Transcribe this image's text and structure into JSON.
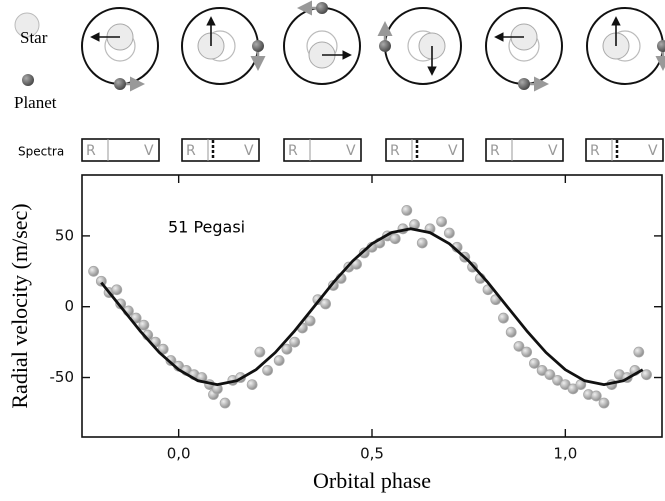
{
  "diagram": {
    "star_label": "Star",
    "planet_label": "Planet",
    "spectra_label": "Spectra",
    "spectra_boxes": [
      [
        "R",
        "V"
      ],
      [
        "R",
        "V"
      ],
      [
        "R",
        "V"
      ],
      [
        "R",
        "V"
      ],
      [
        "R",
        "V"
      ],
      [
        "R",
        "V"
      ]
    ]
  },
  "chart_data": {
    "type": "scatter",
    "annotation": "51 Pegasi",
    "x_label": "Orbital phase",
    "y_label": "Radial velocity (m/sec)",
    "xlim": [
      -0.25,
      1.25
    ],
    "ylim": [
      -92,
      93
    ],
    "xticks": [
      {
        "value": 0,
        "label": "0,0"
      },
      {
        "value": 0.5,
        "label": "0,5"
      },
      {
        "value": 1,
        "label": "1,0"
      }
    ],
    "yticks": [
      -50,
      0,
      50
    ],
    "series": [
      {
        "kind": "points",
        "color": "#a8a8a8",
        "x": [
          -0.22,
          -0.2,
          -0.18,
          -0.16,
          -0.15,
          -0.13,
          -0.11,
          -0.09,
          -0.08,
          -0.06,
          -0.04,
          -0.02,
          0.0,
          0.02,
          0.04,
          0.06,
          0.08,
          0.09,
          0.1,
          0.12,
          0.14,
          0.16,
          0.19,
          0.21,
          0.23,
          0.26,
          0.28,
          0.3,
          0.32,
          0.34,
          0.36,
          0.38,
          0.4,
          0.42,
          0.44,
          0.46,
          0.48,
          0.5,
          0.52,
          0.54,
          0.56,
          0.58,
          0.59,
          0.61,
          0.63,
          0.65,
          0.68,
          0.7,
          0.72,
          0.74,
          0.76,
          0.78,
          0.8,
          0.82,
          0.84,
          0.86,
          0.88,
          0.9,
          0.92,
          0.94,
          0.96,
          0.98,
          1.0,
          1.02,
          1.04,
          1.06,
          1.08,
          1.1,
          1.12,
          1.14,
          1.16,
          1.18,
          1.19,
          1.21
        ],
        "values": [
          25,
          18,
          10,
          12,
          2,
          -3,
          -8,
          -13,
          -20,
          -25,
          -30,
          -38,
          -42,
          -45,
          -48,
          -50,
          -55,
          -62,
          -58,
          -68,
          -52,
          -50,
          -55,
          -32,
          -45,
          -38,
          -30,
          -25,
          -15,
          -10,
          5,
          2,
          15,
          20,
          28,
          30,
          38,
          42,
          45,
          50,
          48,
          55,
          68,
          58,
          45,
          55,
          60,
          52,
          42,
          35,
          28,
          20,
          12,
          5,
          -8,
          -18,
          -28,
          -32,
          -40,
          -45,
          -48,
          -52,
          -55,
          -58,
          -55,
          -62,
          -63,
          -68,
          -55,
          -48,
          -50,
          -45,
          -32,
          -48
        ]
      },
      {
        "kind": "line",
        "color": "#111111",
        "x": [
          -0.2,
          -0.15,
          -0.1,
          -0.05,
          0,
          0.05,
          0.1,
          0.15,
          0.2,
          0.25,
          0.3,
          0.35,
          0.4,
          0.45,
          0.5,
          0.55,
          0.6,
          0.65,
          0.7,
          0.75,
          0.8,
          0.85,
          0.9,
          0.95,
          1.0,
          1.05,
          1.1,
          1.15,
          1.2
        ],
        "values": [
          17.0,
          0,
          -17.0,
          -32.3,
          -44.5,
          -52.3,
          -55,
          -52.3,
          -44.5,
          -32.3,
          -17.0,
          0,
          17.0,
          32.3,
          44.5,
          52.3,
          55,
          52.3,
          44.5,
          32.3,
          17.0,
          0,
          -17.0,
          -32.3,
          -44.5,
          -52.3,
          -55,
          -52.3,
          -44.5
        ]
      }
    ]
  }
}
